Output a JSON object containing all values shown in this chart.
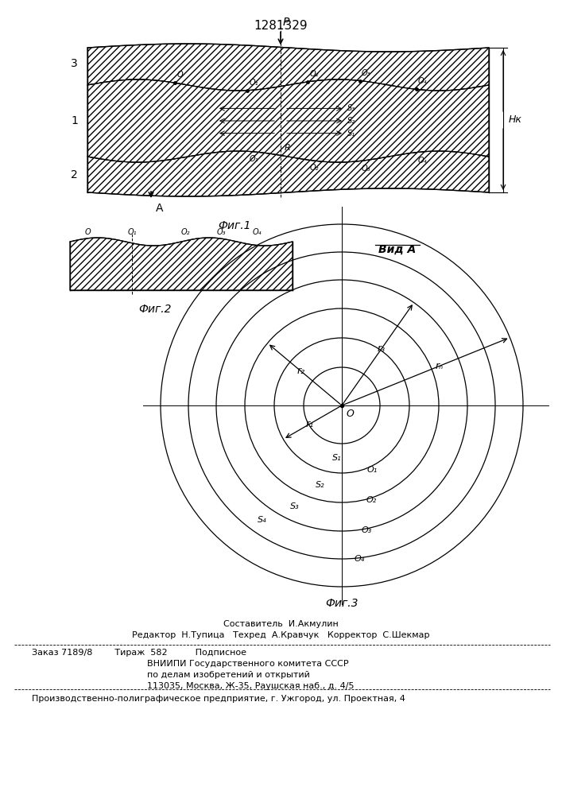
{
  "title": "1281329",
  "fig1_caption": "Фиг.1",
  "fig2_caption": "Фиг.2",
  "fig3_caption": "Фиг.3",
  "vid_a_label": "Вид А",
  "label1": "1",
  "label2": "2",
  "label3": "3",
  "label_P": "P",
  "label_A": "A",
  "label_Hk": "Hк",
  "label_R": "R",
  "label_O": "O",
  "line_color": "#000000",
  "text_color": "#000000",
  "footer_line1": "Составитель  И.Акмулин",
  "footer_line2": "Редактор  Н.Тупица   Техред  А.Кравчук   Корректор  С.Шекмар",
  "footer_line3": "Заказ 7189/8        Тираж  582          Подписное",
  "footer_line4": "ВНИИПИ Государственного комитета СССР",
  "footer_line5": "по делам изобретений и открытий",
  "footer_line6": "113035, Москва, Ж-35, Раушская наб., д. 4/5",
  "footer_line7": "Производственно-полиграфическое предприятие, г. Ужгород, ул. Проектная, 4"
}
